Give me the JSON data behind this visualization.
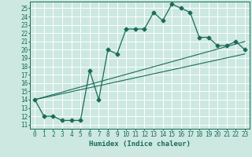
{
  "xlabel": "Humidex (Indice chaleur)",
  "bg_color": "#cce8e0",
  "grid_color": "#ffffff",
  "line_color": "#1a6b5a",
  "xlim": [
    -0.5,
    23.5
  ],
  "ylim": [
    10.5,
    25.8
  ],
  "yticks": [
    11,
    12,
    13,
    14,
    15,
    16,
    17,
    18,
    19,
    20,
    21,
    22,
    23,
    24,
    25
  ],
  "xticks": [
    0,
    1,
    2,
    3,
    4,
    5,
    6,
    7,
    8,
    9,
    10,
    11,
    12,
    13,
    14,
    15,
    16,
    17,
    18,
    19,
    20,
    21,
    22,
    23
  ],
  "main_line_x": [
    0,
    1,
    2,
    3,
    4,
    5,
    6,
    7,
    8,
    9,
    10,
    11,
    12,
    13,
    14,
    15,
    16,
    17,
    18,
    19,
    20,
    21,
    22,
    23
  ],
  "main_line_y": [
    14,
    12,
    12,
    11.5,
    11.5,
    11.5,
    17.5,
    14,
    20,
    19.5,
    22.5,
    22.5,
    22.5,
    24.5,
    23.5,
    25.5,
    25,
    24.5,
    21.5,
    21.5,
    20.5,
    20.5,
    21,
    20
  ],
  "lower_line_x": [
    0,
    23
  ],
  "lower_line_y": [
    14,
    19.5
  ],
  "upper_line_x": [
    0,
    23
  ],
  "upper_line_y": [
    14,
    21
  ],
  "marker_size": 2.5,
  "font_size_label": 6.5,
  "font_size_tick": 5.5
}
